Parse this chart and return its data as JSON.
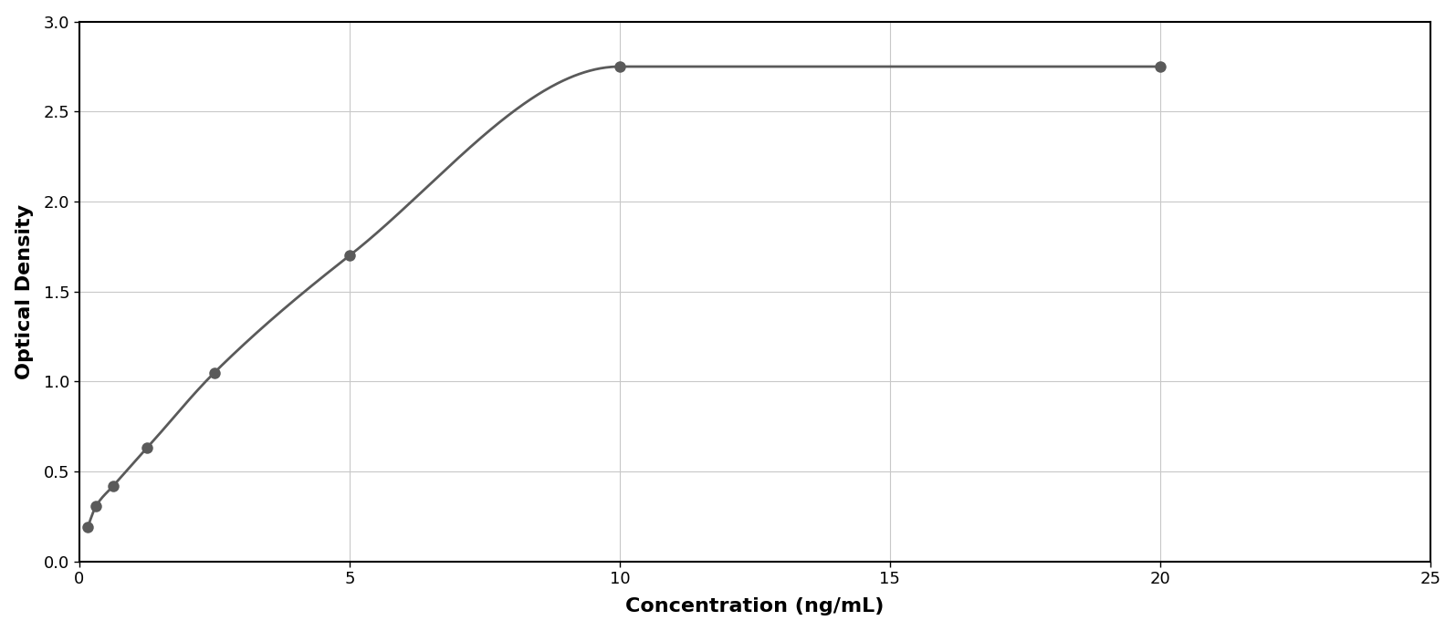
{
  "x_data": [
    0.156,
    0.313,
    0.625,
    1.25,
    2.5,
    5.0,
    10.0,
    20.0
  ],
  "y_data": [
    0.19,
    0.31,
    0.42,
    0.63,
    1.05,
    1.7,
    2.75,
    2.75
  ],
  "xlabel": "Concentration (ng/mL)",
  "ylabel": "Optical Density",
  "xlim": [
    0,
    25
  ],
  "ylim": [
    0,
    3.0
  ],
  "xticks": [
    0,
    5,
    10,
    15,
    20,
    25
  ],
  "yticks": [
    0,
    0.5,
    1.0,
    1.5,
    2.0,
    2.5,
    3.0
  ],
  "line_color": "#5a5a5a",
  "marker_color": "#5a5a5a",
  "marker_size": 9,
  "line_width": 2.0,
  "grid_color": "#c8c8c8",
  "background_color": "#ffffff",
  "xlabel_fontsize": 16,
  "ylabel_fontsize": 16,
  "tick_fontsize": 13,
  "xlabel_fontweight": "bold",
  "ylabel_fontweight": "bold",
  "outer_border_color": "#aaaaaa",
  "outer_border_lw": 2.0
}
